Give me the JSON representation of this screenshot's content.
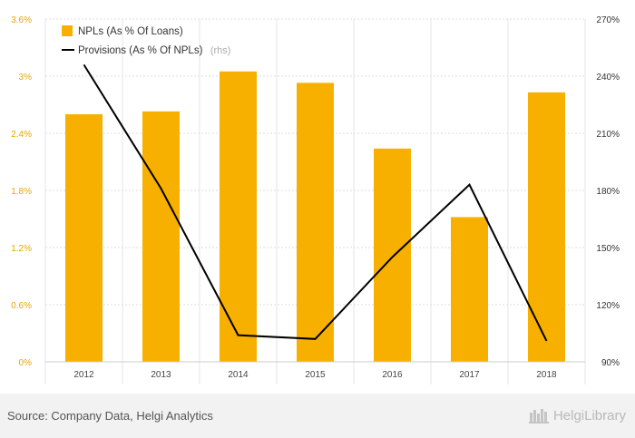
{
  "chart_data": {
    "type": "bar",
    "categories": [
      "2012",
      "2013",
      "2014",
      "2015",
      "2016",
      "2017",
      "2018"
    ],
    "series": [
      {
        "name": "NPLs (As % Of Loans)",
        "type": "bar",
        "axis": "left",
        "color": "#f7b000",
        "values": [
          2.6,
          2.63,
          3.05,
          2.93,
          2.24,
          1.52,
          2.83
        ]
      },
      {
        "name": "Provisions (As % Of NPLs)",
        "type": "line",
        "axis": "right",
        "color": "#000000",
        "values": [
          246,
          181,
          104,
          102,
          145,
          183,
          101
        ]
      }
    ],
    "y_left": {
      "min": 0,
      "max": 3.6,
      "ticks": [
        0,
        0.6,
        1.2,
        1.8,
        2.4,
        3.0,
        3.6
      ],
      "tick_labels": [
        "0%",
        "0.6%",
        "1.2%",
        "1.8%",
        "2.4%",
        "3%",
        "3.6%"
      ],
      "color": "#e8a800"
    },
    "y_right": {
      "min": 90,
      "max": 270,
      "ticks": [
        90,
        120,
        150,
        180,
        210,
        240,
        270
      ],
      "tick_labels": [
        "90%",
        "120%",
        "150%",
        "180%",
        "210%",
        "240%",
        "270%"
      ]
    },
    "legend": {
      "position": "top-left",
      "rhs_note": "(rhs)"
    },
    "grid": true
  },
  "footer": {
    "source": "Source: Company Data, Helgi Analytics",
    "brand": "HelgiLibrary"
  }
}
